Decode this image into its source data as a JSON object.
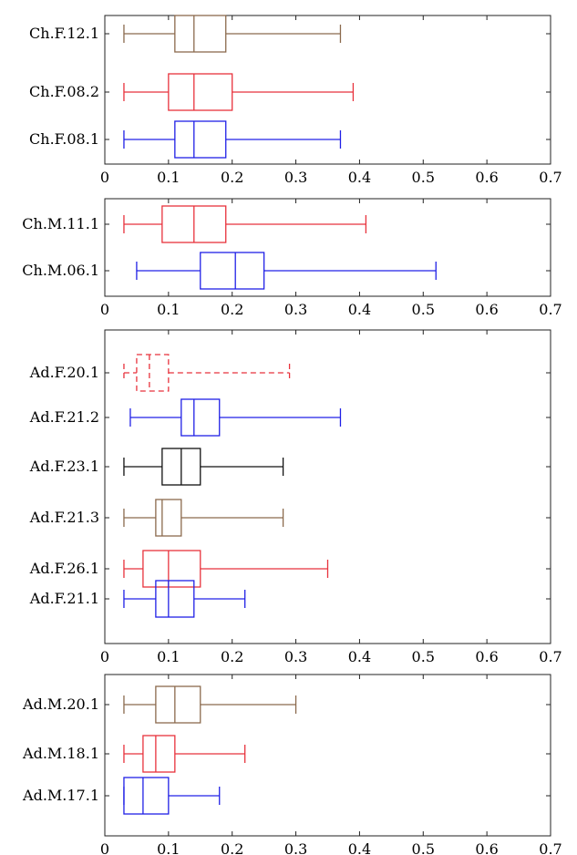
{
  "colors": {
    "brown": "#8b6a4d",
    "red": "#e8323c",
    "blue": "#2020e6",
    "black": "#111111",
    "frame": "#222222"
  },
  "chart_data": [
    {
      "type": "boxplot",
      "orientation": "horizontal",
      "xlim": [
        0,
        0.7
      ],
      "xticks": [
        "0",
        "0.1",
        "0.2",
        "0.3",
        "0.4",
        "0.5",
        "0.6",
        "0.7"
      ],
      "series": [
        {
          "name": "Ch.F.12.1",
          "color": "brown",
          "dashed": false,
          "whisker_low": 0.03,
          "q1": 0.11,
          "median": 0.14,
          "q3": 0.19,
          "whisker_high": 0.37
        },
        {
          "name": "Ch.F.08.2",
          "color": "red",
          "dashed": false,
          "whisker_low": 0.03,
          "q1": 0.1,
          "median": 0.14,
          "q3": 0.2,
          "whisker_high": 0.39
        },
        {
          "name": "Ch.F.08.1",
          "color": "blue",
          "dashed": false,
          "whisker_low": 0.03,
          "q1": 0.11,
          "median": 0.14,
          "q3": 0.19,
          "whisker_high": 0.37
        }
      ]
    },
    {
      "type": "boxplot",
      "orientation": "horizontal",
      "xlim": [
        0,
        0.7
      ],
      "xticks": [
        "0",
        "0.1",
        "0.2",
        "0.3",
        "0.4",
        "0.5",
        "0.6",
        "0.7"
      ],
      "series": [
        {
          "name": "Ch.M.11.1",
          "color": "red",
          "dashed": false,
          "whisker_low": 0.03,
          "q1": 0.09,
          "median": 0.14,
          "q3": 0.19,
          "whisker_high": 0.41
        },
        {
          "name": "Ch.M.06.1",
          "color": "blue",
          "dashed": false,
          "whisker_low": 0.05,
          "q1": 0.15,
          "median": 0.205,
          "q3": 0.25,
          "whisker_high": 0.52
        }
      ]
    },
    {
      "type": "boxplot",
      "orientation": "horizontal",
      "xlim": [
        0,
        0.7
      ],
      "xticks": [
        "0",
        "0.1",
        "0.2",
        "0.3",
        "0.4",
        "0.5",
        "0.6",
        "0.7"
      ],
      "series": [
        {
          "name": "Ad.F.20.1",
          "color": "red",
          "dashed": true,
          "whisker_low": 0.03,
          "q1": 0.05,
          "median": 0.07,
          "q3": 0.1,
          "whisker_high": 0.29
        },
        {
          "name": "Ad.F.21.2",
          "color": "blue",
          "dashed": false,
          "whisker_low": 0.04,
          "q1": 0.12,
          "median": 0.14,
          "q3": 0.18,
          "whisker_high": 0.37
        },
        {
          "name": "Ad.F.23.1",
          "color": "black",
          "dashed": false,
          "whisker_low": 0.03,
          "q1": 0.09,
          "median": 0.12,
          "q3": 0.15,
          "whisker_high": 0.28
        },
        {
          "name": "Ad.F.21.3",
          "color": "brown",
          "dashed": false,
          "whisker_low": 0.03,
          "q1": 0.08,
          "median": 0.09,
          "q3": 0.12,
          "whisker_high": 0.28
        },
        {
          "name": "Ad.F.26.1",
          "color": "red",
          "dashed": false,
          "whisker_low": 0.03,
          "q1": 0.06,
          "median": 0.1,
          "q3": 0.15,
          "whisker_high": 0.35
        },
        {
          "name": "Ad.F.21.1",
          "color": "blue",
          "dashed": false,
          "whisker_low": 0.03,
          "q1": 0.08,
          "median": 0.1,
          "q3": 0.14,
          "whisker_high": 0.22
        }
      ]
    },
    {
      "type": "boxplot",
      "orientation": "horizontal",
      "xlim": [
        0,
        0.7
      ],
      "xticks": [
        "0",
        "0.1",
        "0.2",
        "0.3",
        "0.4",
        "0.5",
        "0.6",
        "0.7"
      ],
      "series": [
        {
          "name": "Ad.M.20.1",
          "color": "brown",
          "dashed": false,
          "whisker_low": 0.03,
          "q1": 0.08,
          "median": 0.11,
          "q3": 0.15,
          "whisker_high": 0.3
        },
        {
          "name": "Ad.M.18.1",
          "color": "red",
          "dashed": false,
          "whisker_low": 0.03,
          "q1": 0.06,
          "median": 0.08,
          "q3": 0.11,
          "whisker_high": 0.22
        },
        {
          "name": "Ad.M.17.1",
          "color": "blue",
          "dashed": false,
          "whisker_low": 0.03,
          "q1": 0.03,
          "median": 0.06,
          "q3": 0.1,
          "whisker_high": 0.18
        }
      ]
    }
  ]
}
